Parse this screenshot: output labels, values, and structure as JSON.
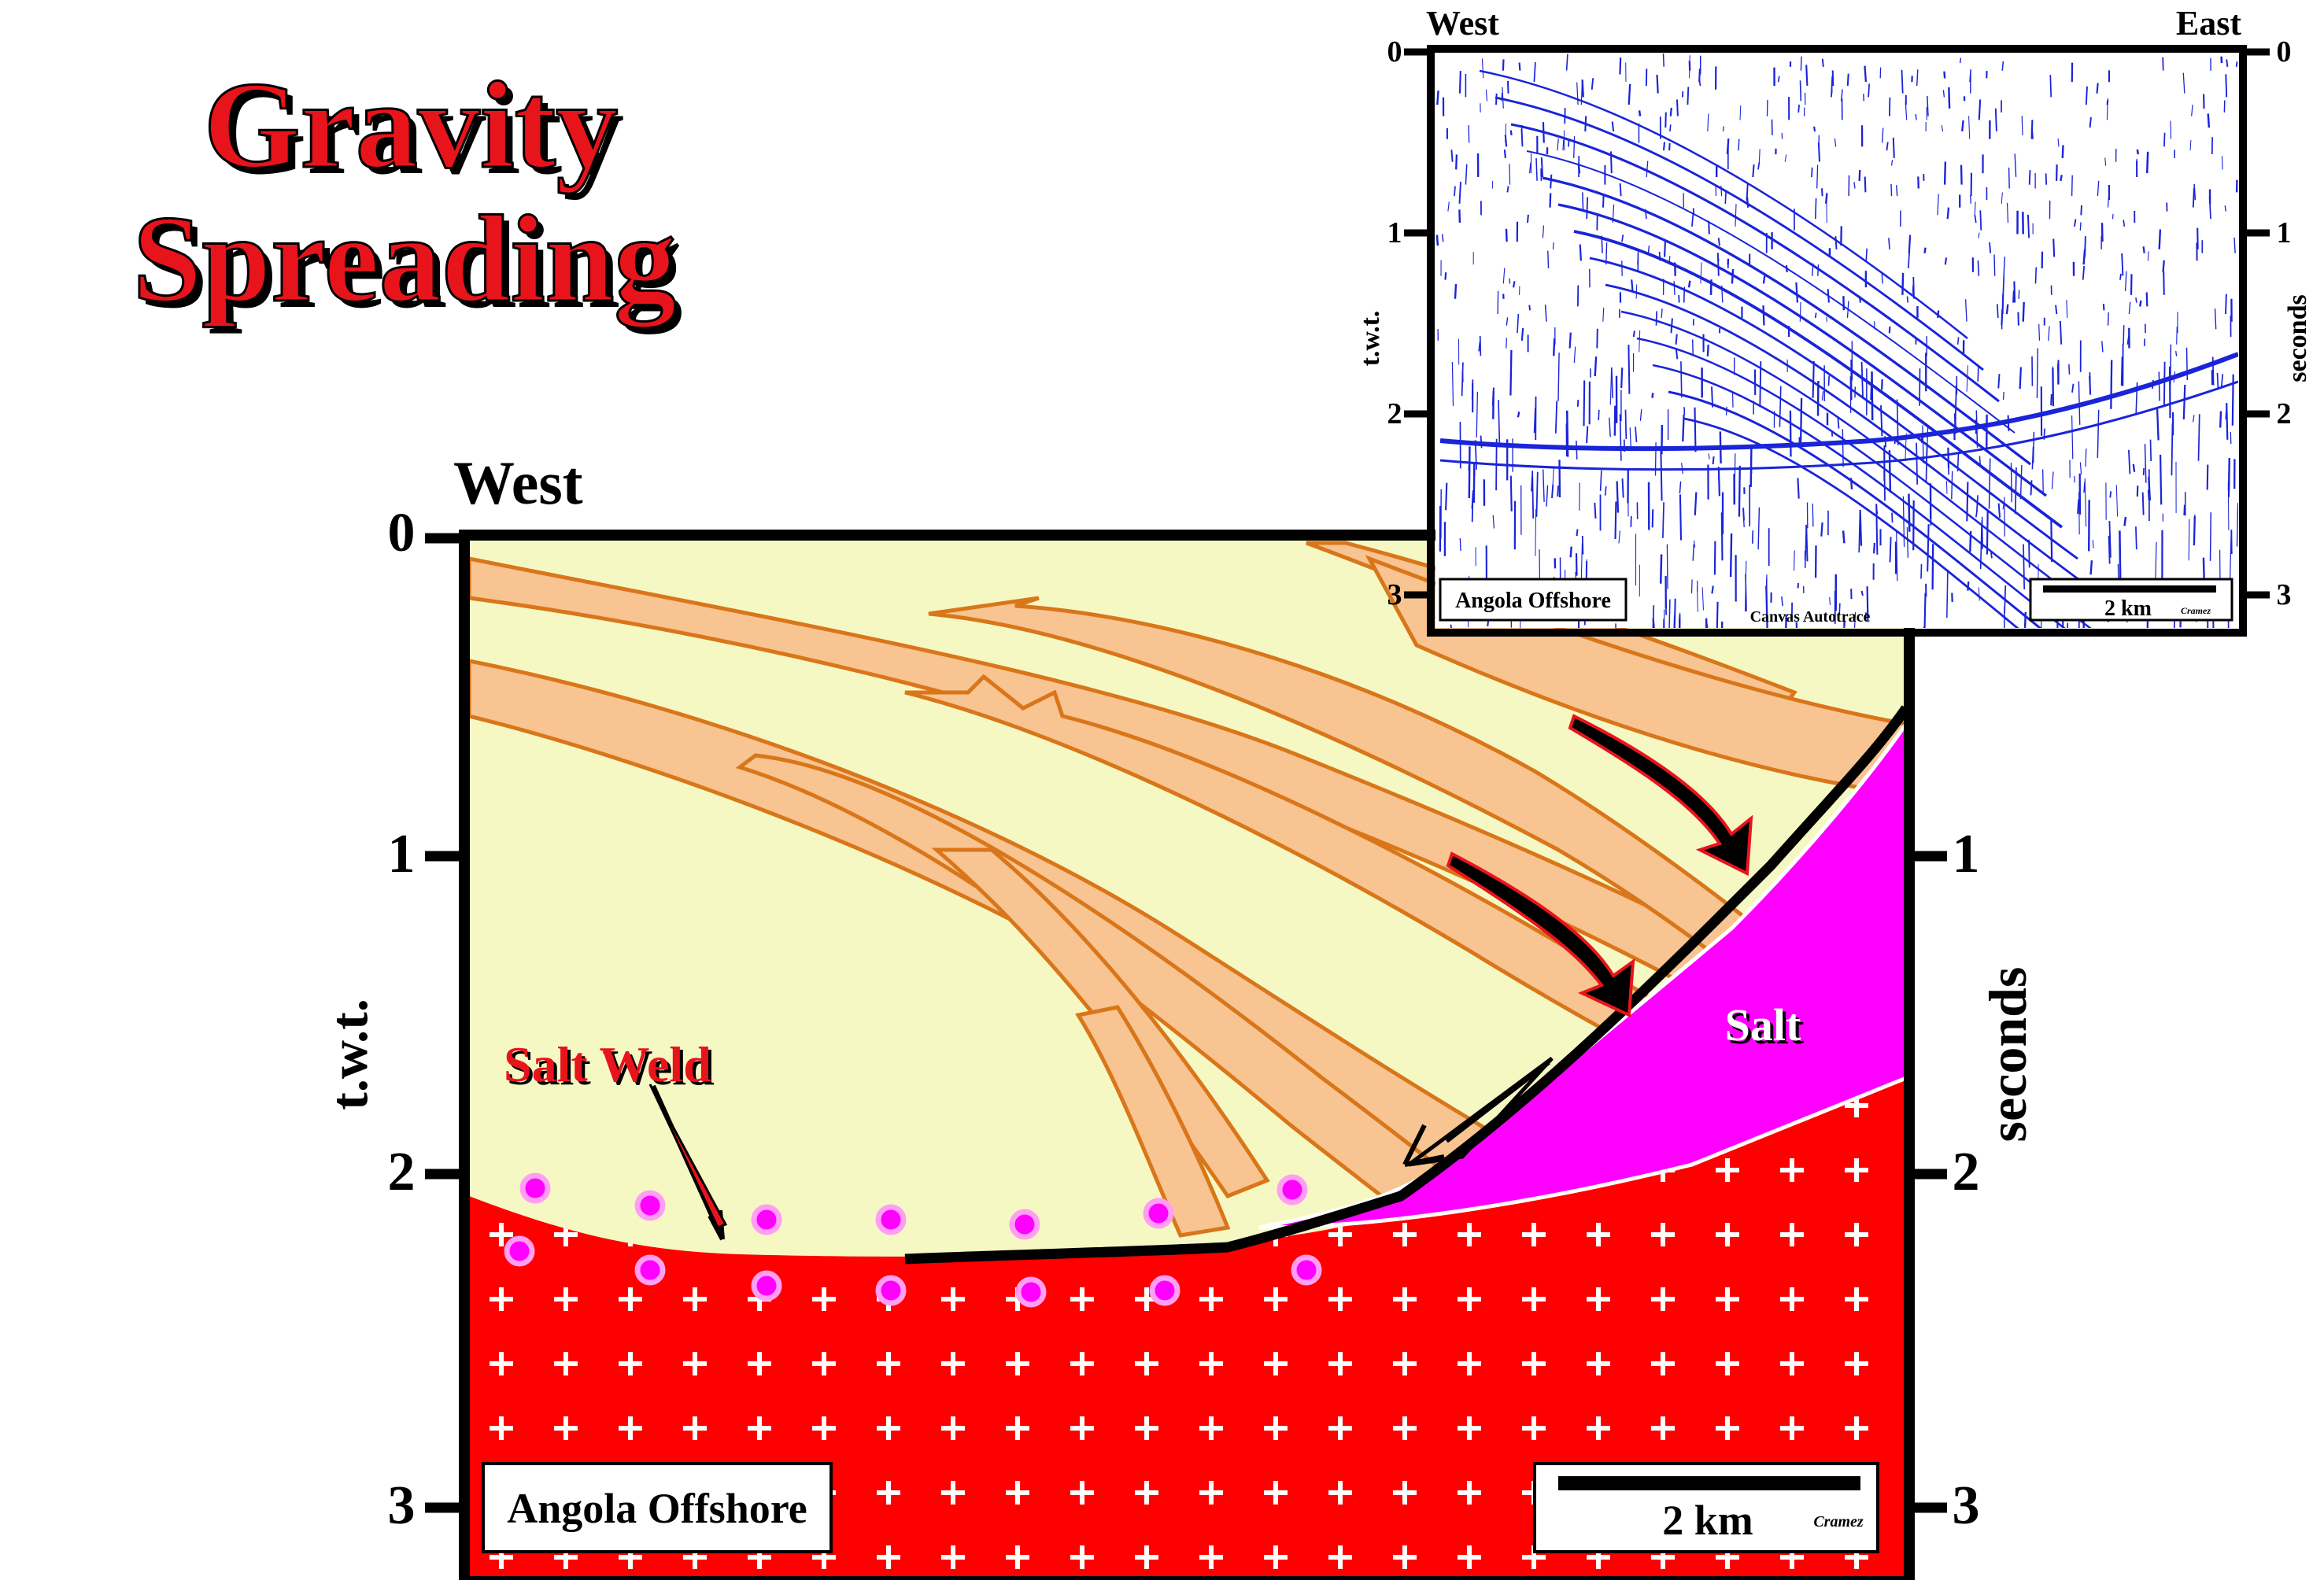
{
  "title": {
    "line1": "Gravity",
    "line2": "Spreading"
  },
  "main": {
    "west_label": "West",
    "axis_label_left": "t.w.t.",
    "axis_label_right": "seconds",
    "ticks": [
      "0",
      "1",
      "2",
      "3"
    ],
    "salt_weld_label": "Salt Weld",
    "salt_label": "Salt",
    "location_label": "Angola Offshore",
    "scale_label": "2 km",
    "credit": "Cramez"
  },
  "inset": {
    "west_label": "West",
    "east_label": "East",
    "axis_label_left": "t.w.t.",
    "axis_label_right": "seconds",
    "ticks": [
      "0",
      "1",
      "2",
      "3"
    ],
    "location_label": "Angola Offshore",
    "software_label": "Canvas Autotrace",
    "scale_label": "2 km",
    "credit": "Cramez"
  },
  "colors": {
    "sediment_pale": "#f6f8c4",
    "sand_layer": "#f8c491",
    "layer_outline": "#d9761a",
    "basement_red": "#ff0000",
    "salt_magenta": "#ff00ff",
    "title_red": "#e8141b",
    "seismic_blue": "#1a24d8"
  }
}
